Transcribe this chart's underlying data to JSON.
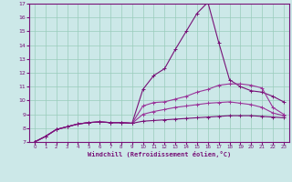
{
  "xlabel": "Windchill (Refroidissement éolien,°C)",
  "ylabel": "",
  "xlim": [
    -0.5,
    23.5
  ],
  "ylim": [
    7,
    17
  ],
  "yticks": [
    7,
    8,
    9,
    10,
    11,
    12,
    13,
    14,
    15,
    16,
    17
  ],
  "xticks": [
    0,
    1,
    2,
    3,
    4,
    5,
    6,
    7,
    8,
    9,
    10,
    11,
    12,
    13,
    14,
    15,
    16,
    17,
    18,
    19,
    20,
    21,
    22,
    23
  ],
  "bg_color": "#cce8e8",
  "grid_color": "#99ccbb",
  "line_color_dark": "#771177",
  "line_color_mid": "#993399",
  "series": [
    [
      7.0,
      7.4,
      7.9,
      8.1,
      8.3,
      8.4,
      8.45,
      8.4,
      8.4,
      8.35,
      10.8,
      11.8,
      12.3,
      13.7,
      15.0,
      16.3,
      17.1,
      14.2,
      11.5,
      11.0,
      10.7,
      10.6,
      10.3,
      9.9
    ],
    [
      7.0,
      7.4,
      7.9,
      8.1,
      8.3,
      8.4,
      8.45,
      8.4,
      8.4,
      8.35,
      9.6,
      9.85,
      9.9,
      10.1,
      10.3,
      10.6,
      10.8,
      11.1,
      11.2,
      11.2,
      11.1,
      10.9,
      9.5,
      9.0
    ],
    [
      7.0,
      7.4,
      7.9,
      8.1,
      8.3,
      8.4,
      8.45,
      8.4,
      8.4,
      8.35,
      9.0,
      9.2,
      9.35,
      9.5,
      9.6,
      9.7,
      9.8,
      9.85,
      9.9,
      9.8,
      9.7,
      9.5,
      9.1,
      8.9
    ],
    [
      7.0,
      7.4,
      7.9,
      8.1,
      8.3,
      8.4,
      8.45,
      8.4,
      8.4,
      8.35,
      8.5,
      8.55,
      8.6,
      8.65,
      8.7,
      8.75,
      8.8,
      8.85,
      8.9,
      8.9,
      8.9,
      8.85,
      8.8,
      8.75
    ]
  ]
}
